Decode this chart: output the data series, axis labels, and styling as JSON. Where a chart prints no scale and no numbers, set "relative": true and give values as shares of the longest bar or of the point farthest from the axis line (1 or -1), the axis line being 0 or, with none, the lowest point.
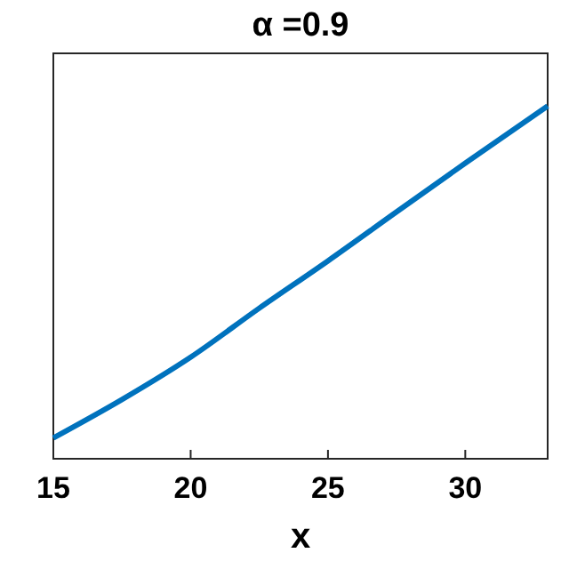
{
  "chart_data": {
    "type": "line",
    "title": "α =0.9",
    "xlabel": "x",
    "relative": true,
    "x": [
      15,
      17.5,
      20,
      22.5,
      25,
      27.5,
      30,
      33
    ],
    "xlim": [
      15,
      33
    ],
    "xticks": [
      15,
      20,
      25,
      30
    ],
    "series": [
      {
        "color": "#0072bd",
        "values": [
          0.059,
          0.168,
          0.288,
          0.427,
          0.561,
          0.7,
          0.838,
          1.0
        ]
      }
    ],
    "grid": false
  }
}
